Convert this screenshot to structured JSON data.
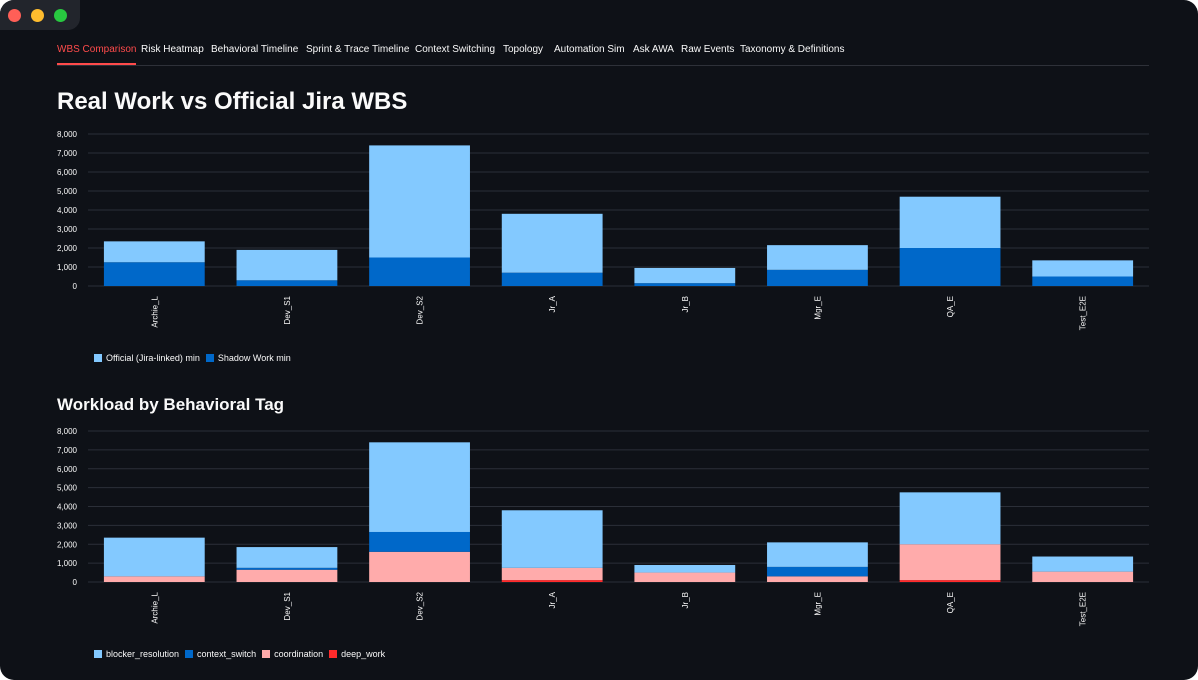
{
  "window": {
    "controls": [
      "close",
      "minimize",
      "maximize"
    ]
  },
  "tabs": [
    {
      "label": "WBS Comparison",
      "active": true
    },
    {
      "label": "Risk Heatmap",
      "active": false
    },
    {
      "label": "Behavioral Timeline",
      "active": false
    },
    {
      "label": "Sprint & Trace Timeline",
      "active": false
    },
    {
      "label": "Context Switching",
      "active": false
    },
    {
      "label": "Topology",
      "active": false
    },
    {
      "label": "Automation Sim",
      "active": false
    },
    {
      "label": "Ask AWA",
      "active": false
    },
    {
      "label": "Raw Events",
      "active": false
    },
    {
      "label": "Taxonomy & Definitions",
      "active": false
    }
  ],
  "page": {
    "title": "Real Work vs Official Jira WBS",
    "section_title": "Workload by Behavioral Tag"
  },
  "colors": {
    "background": "#0e1117",
    "accent": "#ff4b4b",
    "light_blue": "#83c9ff",
    "dark_blue": "#0068c9",
    "pink": "#ffabab",
    "red": "#ff2b2b"
  },
  "chart_data": [
    {
      "type": "bar",
      "stacked": true,
      "title": "",
      "categories": [
        "Archie_L",
        "Dev_S1",
        "Dev_S2",
        "Jr_A",
        "Jr_B",
        "Mgr_E",
        "QA_E",
        "Test_E2E"
      ],
      "yticks": [
        "0",
        "1,000",
        "2,000",
        "3,000",
        "4,000",
        "5,000",
        "6,000",
        "7,000",
        "8,000"
      ],
      "ylim": [
        0,
        8000
      ],
      "series": [
        {
          "name": "Official (Jira-linked) min",
          "color": "#83c9ff",
          "values": [
            1100,
            1600,
            5900,
            3100,
            800,
            1300,
            2700,
            850
          ]
        },
        {
          "name": "Shadow Work min",
          "color": "#0068c9",
          "values": [
            1250,
            300,
            1500,
            700,
            150,
            850,
            2000,
            500
          ]
        }
      ],
      "stack_order": [
        "Shadow Work min",
        "Official (Jira-linked) min"
      ],
      "grid": true,
      "legend_position": "bottom-left"
    },
    {
      "type": "bar",
      "stacked": true,
      "title": "",
      "categories": [
        "Archie_L",
        "Dev_S1",
        "Dev_S2",
        "Jr_A",
        "Jr_B",
        "Mgr_E",
        "QA_E",
        "Test_E2E"
      ],
      "yticks": [
        "0",
        "1,000",
        "2,000",
        "3,000",
        "4,000",
        "5,000",
        "6,000",
        "7,000",
        "8,000"
      ],
      "ylim": [
        0,
        8000
      ],
      "series": [
        {
          "name": "blocker_resolution",
          "color": "#83c9ff",
          "values": [
            2050,
            1100,
            4750,
            3050,
            400,
            1300,
            2750,
            800
          ]
        },
        {
          "name": "context_switch",
          "color": "#0068c9",
          "values": [
            0,
            100,
            1050,
            0,
            0,
            500,
            0,
            0
          ]
        },
        {
          "name": "coordination",
          "color": "#ffabab",
          "values": [
            300,
            650,
            1600,
            650,
            500,
            300,
            1900,
            550
          ]
        },
        {
          "name": "deep_work",
          "color": "#ff2b2b",
          "values": [
            0,
            0,
            0,
            100,
            0,
            0,
            100,
            0
          ]
        }
      ],
      "stack_order": [
        "deep_work",
        "coordination",
        "context_switch",
        "blocker_resolution"
      ],
      "grid": true,
      "legend_position": "bottom-left"
    }
  ]
}
